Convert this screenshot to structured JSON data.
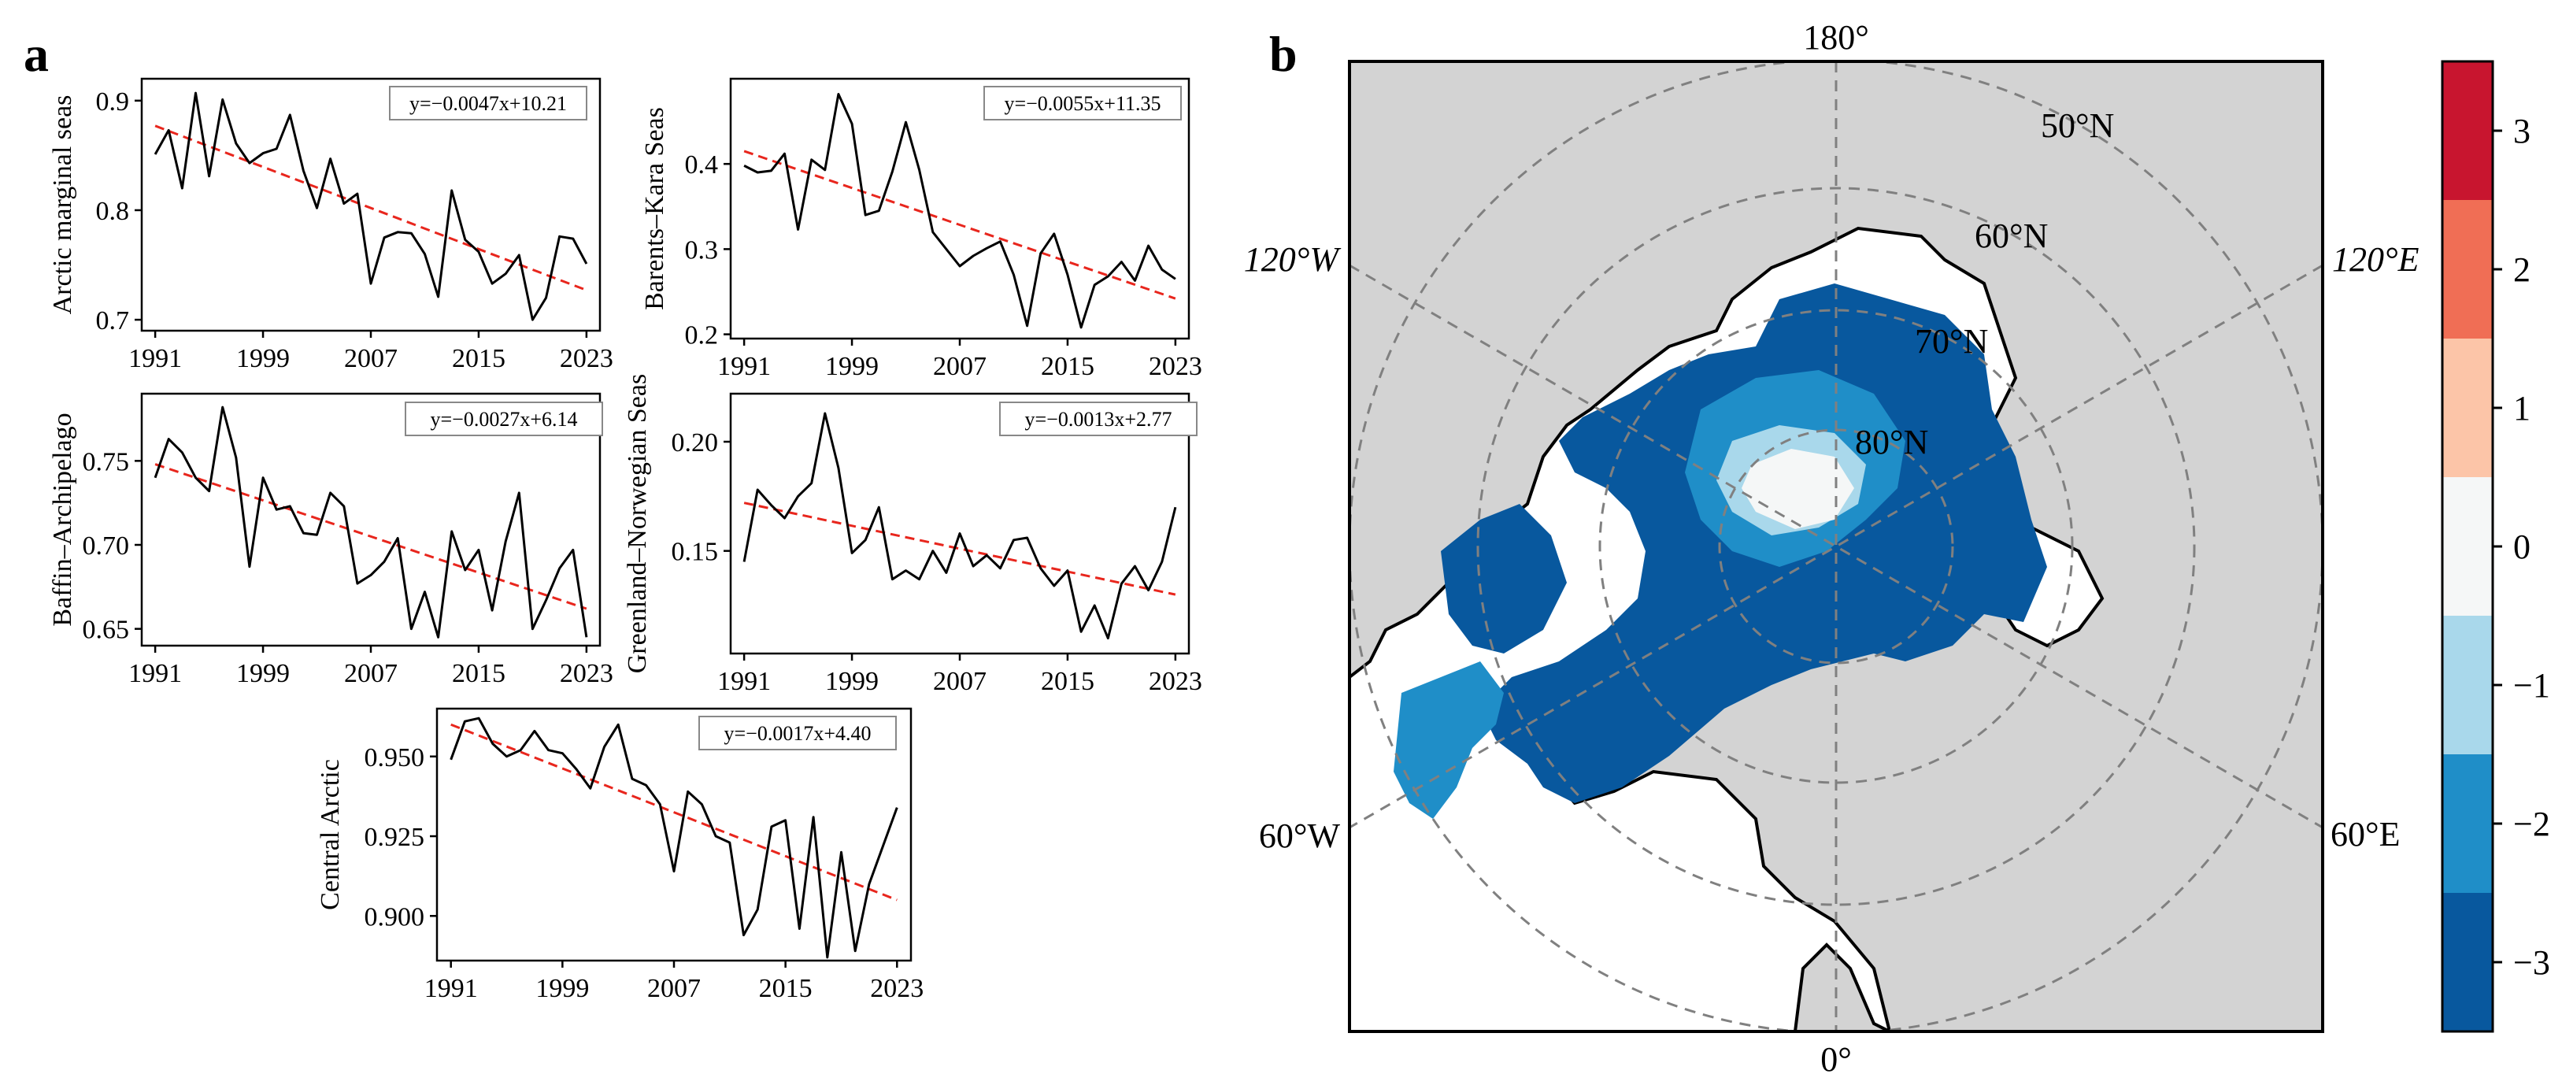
{
  "figure": {
    "panel_a_label": "a",
    "panel_b_label": "b"
  },
  "colors": {
    "series_line": "#000000",
    "trend_line": "#e8261d",
    "land": "#d3d3d3",
    "graticule": "#808080",
    "colorbar": [
      "#08589e",
      "#1f8ec8",
      "#a9d8eb",
      "#f5f7f7",
      "#fcc5a8",
      "#f06e55",
      "#c8152f"
    ]
  },
  "chart_data": [
    {
      "type": "line",
      "ylabel": "Arctic marginal seas",
      "equation": "y=−0.0047x+10.21",
      "x_tick_labels": [
        "1991",
        "1999",
        "2007",
        "2015",
        "2023"
      ],
      "x_ticks": [
        1991,
        1999,
        2007,
        2015,
        2023
      ],
      "y_tick_labels": [
        "0.7",
        "0.8",
        "0.9"
      ],
      "y_ticks": [
        0.7,
        0.8,
        0.9
      ],
      "xlim": [
        1990,
        2024
      ],
      "ylim": [
        0.69,
        0.92
      ],
      "x": [
        1991,
        1992,
        1993,
        1994,
        1995,
        1996,
        1997,
        1998,
        1999,
        2000,
        2001,
        2002,
        2003,
        2004,
        2005,
        2006,
        2007,
        2008,
        2009,
        2010,
        2011,
        2012,
        2013,
        2014,
        2015,
        2016,
        2017,
        2018,
        2019,
        2020,
        2021,
        2022,
        2023
      ],
      "values": [
        0.851,
        0.873,
        0.82,
        0.907,
        0.831,
        0.901,
        0.861,
        0.843,
        0.852,
        0.856,
        0.887,
        0.836,
        0.802,
        0.847,
        0.806,
        0.815,
        0.733,
        0.775,
        0.78,
        0.779,
        0.76,
        0.721,
        0.818,
        0.773,
        0.762,
        0.733,
        0.742,
        0.759,
        0.7,
        0.72,
        0.776,
        0.774,
        0.751
      ],
      "trend": {
        "slope": -0.0047,
        "intercept": 10.21,
        "x_range": [
          1991,
          2023
        ],
        "y_range": [
          0.877,
          0.727
        ]
      }
    },
    {
      "type": "line",
      "ylabel": "Barents–Kara Seas",
      "equation": "y=−0.0055x+11.35",
      "x_tick_labels": [
        "1991",
        "1999",
        "2007",
        "2015",
        "2023"
      ],
      "x_ticks": [
        1991,
        1999,
        2007,
        2015,
        2023
      ],
      "y_tick_labels": [
        "0.2",
        "0.3",
        "0.4"
      ],
      "y_ticks": [
        0.2,
        0.3,
        0.4
      ],
      "xlim": [
        1990,
        2024
      ],
      "ylim": [
        0.195,
        0.5
      ],
      "x": [
        1991,
        1992,
        1993,
        1994,
        1995,
        1996,
        1997,
        1998,
        1999,
        2000,
        2001,
        2002,
        2003,
        2004,
        2005,
        2006,
        2007,
        2008,
        2009,
        2010,
        2011,
        2012,
        2013,
        2014,
        2015,
        2016,
        2017,
        2018,
        2019,
        2020,
        2021,
        2022,
        2023
      ],
      "values": [
        0.398,
        0.39,
        0.392,
        0.412,
        0.323,
        0.405,
        0.393,
        0.482,
        0.447,
        0.34,
        0.345,
        0.391,
        0.449,
        0.393,
        0.32,
        0.3,
        0.28,
        0.292,
        0.301,
        0.309,
        0.27,
        0.21,
        0.295,
        0.318,
        0.27,
        0.208,
        0.258,
        0.268,
        0.285,
        0.263,
        0.304,
        0.276,
        0.265
      ],
      "trend": {
        "slope": -0.0055,
        "intercept": 11.35,
        "x_range": [
          1991,
          2023
        ],
        "y_range": [
          0.415,
          0.242
        ]
      }
    },
    {
      "type": "line",
      "ylabel": "Baffin–Archipelago",
      "equation": "y=−0.0027x+6.14",
      "x_tick_labels": [
        "1991",
        "1999",
        "2007",
        "2015",
        "2023"
      ],
      "x_ticks": [
        1991,
        1999,
        2007,
        2015,
        2023
      ],
      "y_tick_labels": [
        "0.65",
        "0.70",
        "0.75"
      ],
      "y_ticks": [
        0.65,
        0.7,
        0.75
      ],
      "xlim": [
        1990,
        2024
      ],
      "ylim": [
        0.64,
        0.79
      ],
      "x": [
        1991,
        1992,
        1993,
        1994,
        1995,
        1996,
        1997,
        1998,
        1999,
        2000,
        2001,
        2002,
        2003,
        2004,
        2005,
        2006,
        2007,
        2008,
        2009,
        2010,
        2011,
        2012,
        2013,
        2014,
        2015,
        2016,
        2017,
        2018,
        2019,
        2020,
        2021,
        2022,
        2023
      ],
      "values": [
        0.74,
        0.763,
        0.755,
        0.74,
        0.732,
        0.782,
        0.752,
        0.687,
        0.74,
        0.721,
        0.723,
        0.707,
        0.706,
        0.731,
        0.723,
        0.677,
        0.682,
        0.69,
        0.704,
        0.65,
        0.672,
        0.645,
        0.708,
        0.685,
        0.697,
        0.661,
        0.702,
        0.731,
        0.65,
        0.667,
        0.686,
        0.697,
        0.645
      ],
      "trend": {
        "slope": -0.0027,
        "intercept": 6.14,
        "x_range": [
          1991,
          2023
        ],
        "y_range": [
          0.748,
          0.662
        ]
      }
    },
    {
      "type": "line",
      "ylabel": "Greenland–Norwegian Seas",
      "equation": "y=−0.0013x+2.77",
      "x_tick_labels": [
        "1991",
        "1999",
        "2007",
        "2015",
        "2023"
      ],
      "x_ticks": [
        1991,
        1999,
        2007,
        2015,
        2023
      ],
      "y_tick_labels": [
        "0.15",
        "0.20"
      ],
      "y_ticks": [
        0.15,
        0.2
      ],
      "xlim": [
        1990,
        2024
      ],
      "ylim": [
        0.103,
        0.222
      ],
      "x": [
        1991,
        1992,
        1993,
        1994,
        1995,
        1996,
        1997,
        1998,
        1999,
        2000,
        2001,
        2002,
        2003,
        2004,
        2005,
        2006,
        2007,
        2008,
        2009,
        2010,
        2011,
        2012,
        2013,
        2014,
        2015,
        2016,
        2017,
        2018,
        2019,
        2020,
        2021,
        2022,
        2023
      ],
      "values": [
        0.145,
        0.178,
        0.171,
        0.165,
        0.175,
        0.181,
        0.213,
        0.188,
        0.149,
        0.155,
        0.17,
        0.137,
        0.141,
        0.137,
        0.15,
        0.14,
        0.158,
        0.143,
        0.148,
        0.142,
        0.155,
        0.156,
        0.142,
        0.134,
        0.141,
        0.113,
        0.125,
        0.11,
        0.135,
        0.143,
        0.132,
        0.145,
        0.17
      ],
      "trend": {
        "slope": -0.0013,
        "intercept": 2.77,
        "x_range": [
          1991,
          2023
        ],
        "y_range": [
          0.172,
          0.13
        ]
      }
    },
    {
      "type": "line",
      "ylabel": "Central Arctic",
      "equation": "y=−0.0017x+4.40",
      "x_tick_labels": [
        "1991",
        "1999",
        "2007",
        "2015",
        "2023"
      ],
      "x_ticks": [
        1991,
        1999,
        2007,
        2015,
        2023
      ],
      "y_tick_labels": [
        "0.900",
        "0.925",
        "0.950"
      ],
      "y_ticks": [
        0.9,
        0.925,
        0.95
      ],
      "xlim": [
        1990,
        2024
      ],
      "ylim": [
        0.886,
        0.965
      ],
      "x": [
        1991,
        1992,
        1993,
        1994,
        1995,
        1996,
        1997,
        1998,
        1999,
        2000,
        2001,
        2002,
        2003,
        2004,
        2005,
        2006,
        2007,
        2008,
        2009,
        2010,
        2011,
        2012,
        2013,
        2014,
        2015,
        2016,
        2017,
        2018,
        2019,
        2020,
        2021,
        2022,
        2023
      ],
      "values": [
        0.949,
        0.961,
        0.962,
        0.954,
        0.95,
        0.952,
        0.958,
        0.952,
        0.951,
        0.946,
        0.94,
        0.953,
        0.96,
        0.943,
        0.941,
        0.935,
        0.914,
        0.939,
        0.935,
        0.925,
        0.923,
        0.894,
        0.902,
        0.928,
        0.93,
        0.896,
        0.931,
        0.887,
        0.92,
        0.889,
        0.91,
        0.922,
        0.934
      ],
      "trend": {
        "slope": -0.0017,
        "intercept": 4.4,
        "x_range": [
          1991,
          2023
        ],
        "y_range": [
          0.96,
          0.905
        ]
      }
    },
    {
      "type": "heatmap",
      "projection": "north-polar-stereographic",
      "longitude_labels": [
        "180°",
        "120°W",
        "120°E",
        "60°W",
        "60°E",
        "0°"
      ],
      "latitude_labels": [
        "50°N",
        "60°N",
        "70°N",
        "80°N"
      ],
      "colorbar": {
        "ticks": [
          3,
          2,
          1,
          0,
          -1,
          -2,
          -3
        ],
        "tick_labels": [
          "3",
          "2",
          "1",
          "0",
          "−1",
          "−2",
          "−3"
        ],
        "boundaries": [
          3.5,
          2.5,
          1.5,
          0.5,
          -0.5,
          -1.5,
          -2.5,
          -3.5
        ]
      }
    }
  ]
}
